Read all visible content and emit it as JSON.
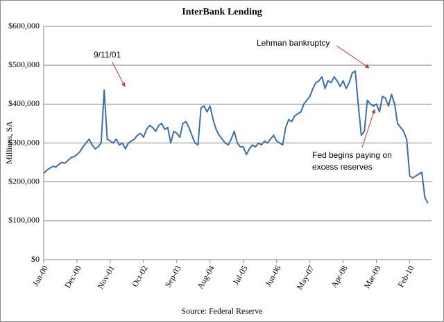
{
  "chart_data": {
    "type": "line",
    "title": "InterBank Lending",
    "y_label": "Millions, SA",
    "source": "Source: Federal Reserve",
    "categories": [
      "Jan-00",
      null,
      null,
      null,
      null,
      null,
      null,
      null,
      null,
      null,
      null,
      "Dec-00",
      null,
      null,
      null,
      null,
      null,
      null,
      null,
      null,
      null,
      null,
      "Nov-01",
      null,
      null,
      null,
      null,
      null,
      null,
      null,
      null,
      null,
      null,
      "Oct-02",
      null,
      null,
      null,
      null,
      null,
      null,
      null,
      null,
      null,
      null,
      "Sep-03",
      null,
      null,
      null,
      null,
      null,
      null,
      null,
      null,
      null,
      null,
      "Aug-04",
      null,
      null,
      null,
      null,
      null,
      null,
      null,
      null,
      null,
      null,
      "Jul-05",
      null,
      null,
      null,
      null,
      null,
      null,
      null,
      null,
      null,
      null,
      "Jun-06",
      null,
      null,
      null,
      null,
      null,
      null,
      null,
      null,
      null,
      null,
      "May-07",
      null,
      null,
      null,
      null,
      null,
      null,
      null,
      null,
      null,
      null,
      "Apr-08",
      null,
      null,
      null,
      null,
      null,
      null,
      null,
      null,
      null,
      null,
      "Mar-09",
      null,
      null,
      null,
      null,
      null,
      null,
      null,
      null,
      null,
      null,
      "Feb-10",
      null,
      null,
      null,
      null,
      null,
      null
    ],
    "series": [
      {
        "name": "InterBank Lending",
        "color": "#3a6eb0",
        "values": [
          222000,
          230000,
          235000,
          240000,
          238000,
          245000,
          250000,
          248000,
          255000,
          262000,
          265000,
          270000,
          278000,
          290000,
          300000,
          310000,
          295000,
          285000,
          290000,
          300000,
          436000,
          310000,
          305000,
          300000,
          310000,
          295000,
          300000,
          285000,
          300000,
          305000,
          310000,
          320000,
          325000,
          315000,
          335000,
          345000,
          340000,
          330000,
          345000,
          350000,
          335000,
          340000,
          300000,
          330000,
          325000,
          315000,
          350000,
          355000,
          340000,
          320000,
          300000,
          295000,
          390000,
          395000,
          380000,
          395000,
          360000,
          335000,
          320000,
          310000,
          300000,
          295000,
          310000,
          330000,
          300000,
          290000,
          290000,
          270000,
          285000,
          295000,
          290000,
          300000,
          295000,
          305000,
          300000,
          310000,
          320000,
          305000,
          300000,
          295000,
          340000,
          360000,
          355000,
          370000,
          375000,
          380000,
          400000,
          410000,
          420000,
          440000,
          455000,
          460000,
          470000,
          440000,
          460000,
          455000,
          470000,
          460000,
          445000,
          460000,
          440000,
          455000,
          480000,
          485000,
          400000,
          320000,
          330000,
          410000,
          400000,
          395000,
          400000,
          380000,
          420000,
          415000,
          395000,
          425000,
          400000,
          350000,
          340000,
          330000,
          310000,
          215000,
          210000,
          215000,
          220000,
          225000,
          160000,
          145000
        ]
      }
    ],
    "ylim": [
      0,
      600000
    ],
    "yticks": [
      {
        "value": 0,
        "label": "$0"
      },
      {
        "value": 100000,
        "label": "$100,000"
      },
      {
        "value": 200000,
        "label": "$200,000"
      },
      {
        "value": 300000,
        "label": "$300,000"
      },
      {
        "value": 400000,
        "label": "$400,000"
      },
      {
        "value": 500000,
        "label": "$500,000"
      },
      {
        "value": 600000,
        "label": "$600,000"
      }
    ],
    "grid": true,
    "annotations": [
      "9/11/01",
      "Lehman bankruptcy",
      "Fed begins paying on",
      "excess reserves"
    ]
  }
}
